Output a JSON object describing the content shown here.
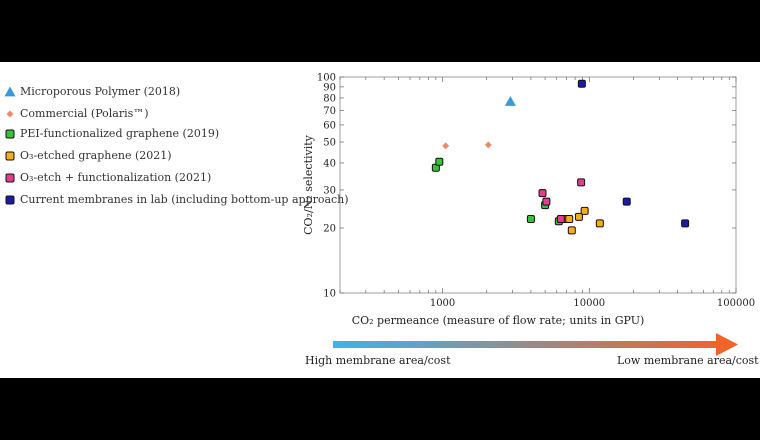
{
  "colors": {
    "microporous": "#3a9ad9",
    "commercial": "#f08a6a",
    "pei": "#39c13a",
    "o3_etched": "#f5ad1b",
    "o3_func": "#e83a8e",
    "current": "#1a1ab0",
    "gradient_start": "#3ab4ee",
    "gradient_end": "#f0642a"
  },
  "legend": [
    {
      "key": "microporous",
      "label": "Microporous Polymer (2018)",
      "marker": "triangle"
    },
    {
      "key": "commercial",
      "label": "Commercial (Polaris™)",
      "marker": "diamond"
    },
    {
      "key": "pei",
      "label": "PEI-functionalized graphene (2019)",
      "marker": "square"
    },
    {
      "key": "o3_etched",
      "label": "O₃-etched graphene (2021)",
      "marker": "square"
    },
    {
      "key": "o3_func",
      "label": "O₃-etch + functionalization (2021)",
      "marker": "square"
    },
    {
      "key": "current",
      "label": "Current membranes in lab (including bottom-up approach)",
      "marker": "square"
    }
  ],
  "gradient": {
    "left_label": "High membrane area/cost",
    "right_label": "Low membrane area/cost"
  },
  "chart_data": {
    "type": "scatter",
    "xscale": "log",
    "yscale": "log",
    "xlabel": "CO₂ permeance (measure of flow rate; units in GPU)",
    "ylabel": "CO₂/N₂ selectivity",
    "xlim": [
      200,
      100000
    ],
    "ylim": [
      10,
      100
    ],
    "xticks": [
      {
        "v": 1000,
        "label": "1000"
      },
      {
        "v": 10000,
        "label": "10000"
      },
      {
        "v": 100000,
        "label": "100000"
      }
    ],
    "yticks": [
      {
        "v": 10,
        "label": "10"
      },
      {
        "v": 20,
        "label": "20"
      },
      {
        "v": 30,
        "label": "30"
      },
      {
        "v": 40,
        "label": "40"
      },
      {
        "v": 50,
        "label": "50"
      },
      {
        "v": 60,
        "label": "60"
      },
      {
        "v": 70,
        "label": "70"
      },
      {
        "v": 80,
        "label": "80"
      },
      {
        "v": 90,
        "label": "90"
      },
      {
        "v": 100,
        "label": "100"
      }
    ],
    "series": [
      {
        "key": "microporous",
        "marker": "triangle",
        "points": [
          [
            2900,
            77
          ]
        ]
      },
      {
        "key": "commercial",
        "marker": "diamond",
        "points": [
          [
            1050,
            48
          ],
          [
            2050,
            48.5
          ]
        ]
      },
      {
        "key": "pei",
        "marker": "square",
        "points": [
          [
            900,
            38
          ],
          [
            950,
            40.5
          ],
          [
            4000,
            22
          ],
          [
            5000,
            25.5
          ],
          [
            6200,
            21.5
          ]
        ]
      },
      {
        "key": "o3_etched",
        "marker": "square",
        "points": [
          [
            6800,
            22
          ],
          [
            7300,
            22
          ],
          [
            7600,
            19.5
          ],
          [
            8500,
            22.5
          ],
          [
            9300,
            24
          ],
          [
            11800,
            21
          ]
        ]
      },
      {
        "key": "o3_func",
        "marker": "square",
        "points": [
          [
            4800,
            29
          ],
          [
            5100,
            26.5
          ],
          [
            6400,
            22
          ],
          [
            8800,
            32.5
          ]
        ]
      },
      {
        "key": "current",
        "marker": "square",
        "points": [
          [
            8900,
            93
          ],
          [
            18000,
            26.5
          ],
          [
            45000,
            21
          ]
        ]
      }
    ]
  }
}
